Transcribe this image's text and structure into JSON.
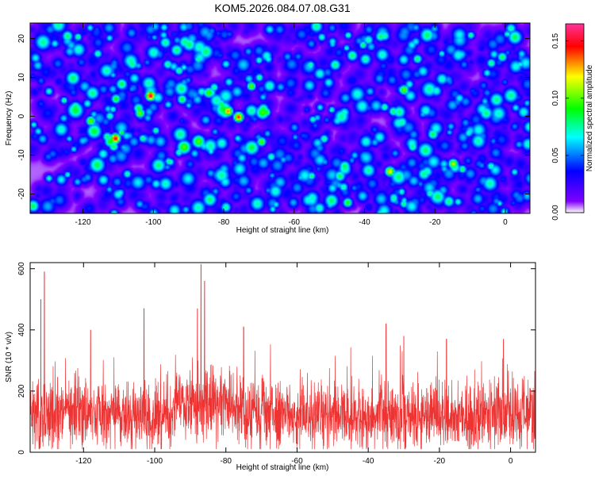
{
  "title": "KOM5.2026.084.07.08.G31",
  "chart_data": [
    {
      "type": "heatmap",
      "xlabel": "Height of straight line (km)",
      "ylabel": "Frequency (Hz)",
      "xlim": [
        -135,
        7
      ],
      "ylim": [
        -25,
        24
      ],
      "x_ticks": [
        -120,
        -100,
        -80,
        -60,
        -40,
        -20,
        0
      ],
      "y_ticks": [
        -20,
        -10,
        0,
        10,
        20
      ],
      "colorbar": {
        "label": "Normalized spectral amplitude",
        "range": [
          0,
          0.165
        ],
        "ticks": [
          0.0,
          0.05,
          0.1,
          0.15
        ],
        "tick_labels": [
          "0.00",
          "0.05",
          "0.10",
          "0.15"
        ],
        "colors": [
          "#ffffff",
          "#8000ff",
          "#0000ff",
          "#00ffff",
          "#00ff00",
          "#ffff00",
          "#ff0000",
          "#ff3399"
        ]
      },
      "hotspots": [
        {
          "x": -101,
          "y": 5.5,
          "v": 0.155
        },
        {
          "x": -111,
          "y": -5.5,
          "v": 0.15
        },
        {
          "x": -76,
          "y": 0,
          "v": 0.14
        },
        {
          "x": -79,
          "y": 1.5,
          "v": 0.13
        },
        {
          "x": -104,
          "y": 1,
          "v": 0.1
        },
        {
          "x": -118,
          "y": -1,
          "v": 0.1
        },
        {
          "x": -33,
          "y": -14,
          "v": 0.12
        },
        {
          "x": -15,
          "y": -12,
          "v": 0.11
        },
        {
          "x": -29,
          "y": 7,
          "v": 0.1
        },
        {
          "x": -45,
          "y": -22,
          "v": 0.09
        }
      ]
    },
    {
      "type": "line",
      "xlabel": "Height of straight line (km)",
      "ylabel": "SNR (10 * v/v)",
      "xlim": [
        -135,
        7
      ],
      "ylim": [
        0,
        620
      ],
      "x_ticks": [
        -120,
        -100,
        -80,
        -60,
        -40,
        -20,
        0
      ],
      "y_ticks": [
        0,
        200,
        400,
        600
      ],
      "color": "#ee3333",
      "peaks": [
        {
          "x": -131,
          "y": 590
        },
        {
          "x": -132,
          "y": 500
        },
        {
          "x": -87,
          "y": 615
        },
        {
          "x": -86,
          "y": 560
        },
        {
          "x": -88,
          "y": 470
        },
        {
          "x": -103,
          "y": 470
        },
        {
          "x": -35,
          "y": 420
        },
        {
          "x": -118,
          "y": 400
        },
        {
          "x": -75,
          "y": 410
        },
        {
          "x": -30,
          "y": 380
        },
        {
          "x": -18,
          "y": 370
        },
        {
          "x": -2,
          "y": 370
        }
      ],
      "baseline_mean": 120
    }
  ]
}
